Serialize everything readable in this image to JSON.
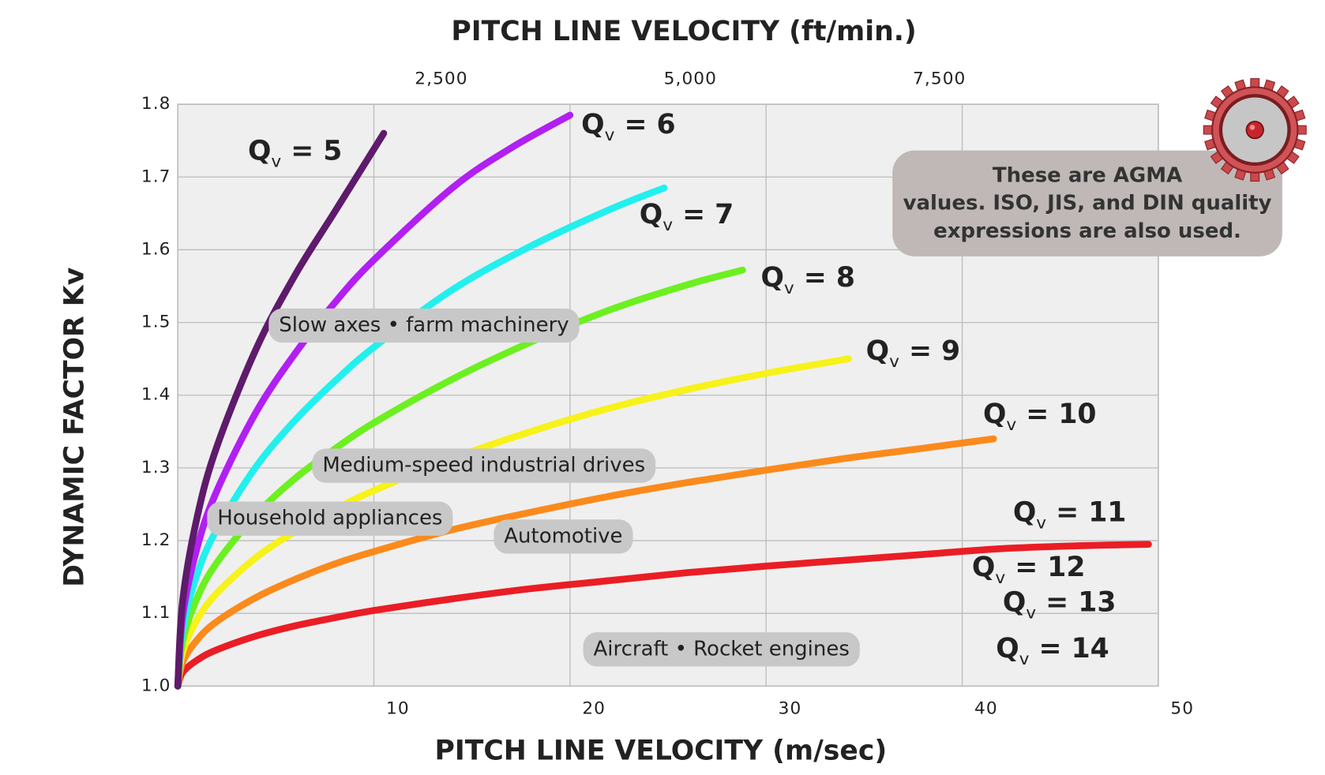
{
  "chart_data": {
    "type": "line",
    "title": "PITCH LINE VELOCITY (ft/min.)",
    "x_label": "PITCH LINE VELOCITY (m/sec)",
    "y_label": "DYNAMIC FACTOR  Kv",
    "xlim": [
      0,
      50
    ],
    "xticks": [
      10,
      20,
      30,
      40,
      50
    ],
    "x2lim": [
      0,
      9843
    ],
    "x2ticks": [
      {
        "value": 2500,
        "label": "2,500"
      },
      {
        "value": 5000,
        "label": "5,000"
      },
      {
        "value": 7500,
        "label": "7,500"
      }
    ],
    "ylim": [
      1,
      1.8
    ],
    "yticks": [
      {
        "value": 1,
        "label": "1.0"
      },
      1.1,
      1.2,
      1.3,
      1.4,
      1.5,
      1.6,
      1.7,
      1.8
    ],
    "grid": true,
    "series": [
      {
        "name": "Qv = 5",
        "color": "#5e1a6b",
        "x": [
          0,
          0.25,
          1,
          2,
          4,
          6,
          8,
          10.5
        ],
        "values": [
          1.0,
          1.118,
          1.234,
          1.33,
          1.464,
          1.566,
          1.652,
          1.76
        ]
      },
      {
        "name": "Qv = 6",
        "color": "#b21ff2",
        "x": [
          0,
          0.25,
          1,
          2,
          4,
          6,
          8,
          10,
          14,
          17,
          20
        ],
        "values": [
          1.0,
          1.097,
          1.192,
          1.269,
          1.377,
          1.458,
          1.527,
          1.586,
          1.685,
          1.74,
          1.785
        ]
      },
      {
        "name": "Qv = 7",
        "color": "#22f0ee",
        "x": [
          0,
          0.25,
          1,
          2,
          4,
          6,
          8,
          10,
          14,
          18,
          22,
          24.8
        ],
        "values": [
          1.0,
          1.078,
          1.155,
          1.216,
          1.302,
          1.366,
          1.419,
          1.466,
          1.545,
          1.605,
          1.655,
          1.685
        ]
      },
      {
        "name": "Qv = 8",
        "color": "#6cf020",
        "x": [
          0,
          0.25,
          1,
          2,
          4,
          6,
          8,
          10,
          14,
          18,
          22,
          26,
          28.8
        ],
        "values": [
          1.0,
          1.062,
          1.122,
          1.17,
          1.236,
          1.286,
          1.326,
          1.362,
          1.422,
          1.473,
          1.517,
          1.552,
          1.572
        ]
      },
      {
        "name": "Qv = 9",
        "color": "#f7f21a",
        "x": [
          0,
          0.25,
          1,
          2,
          4,
          6,
          8,
          10,
          14,
          18,
          22,
          26,
          30,
          34.2
        ],
        "values": [
          1.0,
          1.047,
          1.092,
          1.128,
          1.177,
          1.213,
          1.243,
          1.269,
          1.313,
          1.35,
          1.382,
          1.408,
          1.43,
          1.45
        ]
      },
      {
        "name": "Qv = 10",
        "color": "#fb8a1c",
        "x": [
          0,
          0.25,
          1,
          2,
          4,
          6,
          8,
          10,
          14,
          18,
          22,
          26,
          30,
          34,
          38,
          41.6
        ],
        "values": [
          1.0,
          1.033,
          1.064,
          1.089,
          1.122,
          1.147,
          1.168,
          1.185,
          1.215,
          1.239,
          1.261,
          1.28,
          1.297,
          1.313,
          1.327,
          1.34
        ]
      },
      {
        "name": "Qv = 11",
        "color": "#ea1d25",
        "x": [
          0,
          0.25,
          1,
          2,
          4,
          6,
          8,
          10,
          14,
          18,
          22,
          26,
          30,
          34,
          38,
          42,
          46,
          49.5
        ],
        "values": [
          1.0,
          1.019,
          1.036,
          1.05,
          1.069,
          1.083,
          1.094,
          1.104,
          1.12,
          1.134,
          1.145,
          1.156,
          1.165,
          1.173,
          1.181,
          1.189,
          1.193,
          1.195
        ]
      }
    ],
    "extra_labels": [
      "Qv = 12",
      "Qv = 13",
      "Qv = 14"
    ],
    "annotations": [
      "Slow axes • farm machinery",
      "Medium-speed industrial drives",
      "Household appliances",
      "Automotive",
      "Aircraft • Rocket engines"
    ],
    "note": [
      "These are AGMA",
      "values. ISO, JIS, and DIN quality",
      "expressions are also used."
    ]
  }
}
